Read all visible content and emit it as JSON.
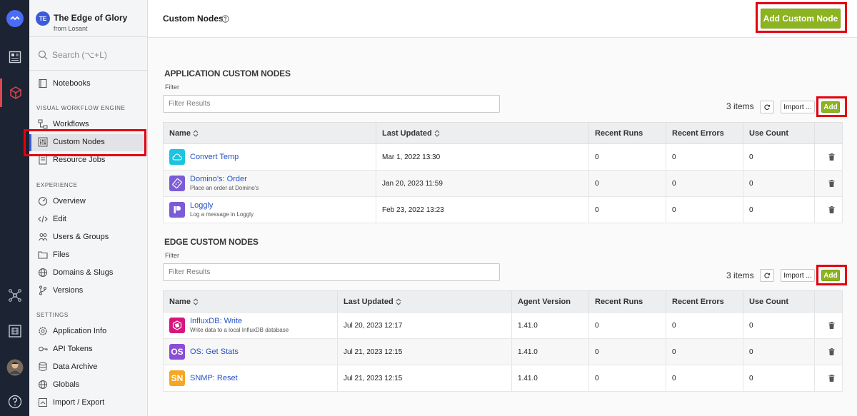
{
  "app": {
    "initials": "TE",
    "name": "The Edge of Glory",
    "from": "from Losant"
  },
  "search": {
    "placeholder": "Search (⌥+L)"
  },
  "sidebar": {
    "notebooks": "Notebooks",
    "section_workflow": "VISUAL WORKFLOW ENGINE",
    "workflows": "Workflows",
    "custom_nodes": "Custom Nodes",
    "resource_jobs": "Resource Jobs",
    "section_experience": "EXPERIENCE",
    "overview": "Overview",
    "edit": "Edit",
    "users_groups": "Users & Groups",
    "files": "Files",
    "domains_slugs": "Domains & Slugs",
    "versions": "Versions",
    "section_settings": "SETTINGS",
    "application_info": "Application Info",
    "api_tokens": "API Tokens",
    "data_archive": "Data Archive",
    "globals": "Globals",
    "import_export": "Import / Export"
  },
  "header": {
    "title": "Custom Nodes",
    "add_button": "Add Custom Node"
  },
  "app_nodes": {
    "title": "APPLICATION CUSTOM NODES",
    "filter_label": "Filter",
    "filter_placeholder": "Filter Results",
    "count": "3 items",
    "import_label": "Import ...",
    "add_label": "Add",
    "columns": [
      "Name",
      "Last Updated",
      "Recent Runs",
      "Recent Errors",
      "Use Count"
    ],
    "rows": [
      {
        "name": "Convert Temp",
        "desc": "",
        "updated": "Mar 1, 2022 13:30",
        "runs": "0",
        "errors": "0",
        "uses": "0",
        "icon": "cloud-icon",
        "color": "#1bc4e0"
      },
      {
        "name": "Domino's: Order",
        "desc": "Place an order at Domino's",
        "updated": "Jan 20, 2023 11:59",
        "runs": "0",
        "errors": "0",
        "uses": "0",
        "icon": "domino-icon",
        "color": "#7b5cd6"
      },
      {
        "name": "Loggly",
        "desc": "Log a message in Loggly",
        "updated": "Feb 23, 2022 13:23",
        "runs": "0",
        "errors": "0",
        "uses": "0",
        "icon": "loggly-icon",
        "color": "#7b5cd6"
      }
    ]
  },
  "edge_nodes": {
    "title": "EDGE CUSTOM NODES",
    "filter_label": "Filter",
    "filter_placeholder": "Filter Results",
    "count": "3 items",
    "import_label": "Import ...",
    "add_label": "Add",
    "columns": [
      "Name",
      "Last Updated",
      "Agent Version",
      "Recent Runs",
      "Recent Errors",
      "Use Count"
    ],
    "rows": [
      {
        "name": "InfluxDB: Write",
        "desc": "Write data to a local InfluxDB database",
        "updated": "Jul 20, 2023 12:17",
        "agent": "1.41.0",
        "runs": "0",
        "errors": "0",
        "uses": "0",
        "icon": "influxdb-icon",
        "color": "#d6167d"
      },
      {
        "name": "OS: Get Stats",
        "desc": "",
        "updated": "Jul 21, 2023 12:15",
        "agent": "1.41.0",
        "runs": "0",
        "errors": "0",
        "uses": "0",
        "icon": "os-icon",
        "badge": "OS",
        "color": "#8a4fd6"
      },
      {
        "name": "SNMP: Reset",
        "desc": "",
        "updated": "Jul 21, 2023 12:15",
        "agent": "1.41.0",
        "runs": "0",
        "errors": "0",
        "uses": "0",
        "icon": "snmp-icon",
        "badge": "SN",
        "color": "#f5a623"
      }
    ]
  }
}
